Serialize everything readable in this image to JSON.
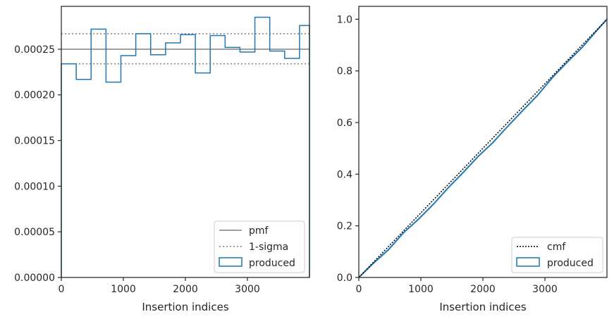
{
  "chart_data": [
    {
      "type": "histogram",
      "xlabel": "Insertion indices",
      "ylabel": "",
      "xlim": [
        0,
        4000
      ],
      "ylim": [
        0,
        0.000297
      ],
      "xticks": [
        0,
        1000,
        2000,
        3000
      ],
      "xtick_labels": [
        "0",
        "1000",
        "2000",
        "3000"
      ],
      "yticks": [
        0,
        5e-05,
        0.0001,
        0.00015,
        0.0002,
        0.00025
      ],
      "ytick_labels": [
        "0.00000",
        "0.00005",
        "0.00010",
        "0.00015",
        "0.00020",
        "0.00025"
      ],
      "bin_edges": [
        0,
        240,
        480,
        720,
        960,
        1200,
        1440,
        1680,
        1920,
        2160,
        2400,
        2640,
        2880,
        3120,
        3360,
        3600,
        3840,
        4000
      ],
      "values": [
        0.000234,
        0.000217,
        0.000272,
        0.000214,
        0.000243,
        0.000267,
        0.000244,
        0.000257,
        0.000266,
        0.000224,
        0.000265,
        0.000252,
        0.000247,
        0.000285,
        0.000248,
        0.00024,
        0.000276
      ],
      "pmf": 0.00025,
      "sigma_band": [
        0.000234,
        0.000267
      ],
      "legend": {
        "position": "lower right",
        "entries": [
          "pmf",
          "1-sigma",
          "produced"
        ]
      },
      "colors": {
        "pmf": "#808080",
        "sigma": "#808080",
        "produced": "#1f77b4"
      }
    },
    {
      "type": "line",
      "xlabel": "Insertion indices",
      "ylabel": "",
      "xlim": [
        0,
        4000
      ],
      "ylim": [
        0,
        1.05
      ],
      "xticks": [
        0,
        1000,
        2000,
        3000
      ],
      "xtick_labels": [
        "0",
        "1000",
        "2000",
        "3000"
      ],
      "yticks": [
        0,
        0.2,
        0.4,
        0.6,
        0.8,
        1.0
      ],
      "ytick_labels": [
        "0.0",
        "0.2",
        "0.4",
        "0.6",
        "0.8",
        "1.0"
      ],
      "cmf": {
        "x": [
          0,
          4000
        ],
        "y": [
          0,
          1.0
        ]
      },
      "produced": {
        "x": [
          0,
          240,
          480,
          720,
          960,
          1200,
          1440,
          1680,
          1920,
          2160,
          2400,
          2640,
          2880,
          3120,
          3360,
          3600,
          3840,
          4000
        ],
        "y": [
          0,
          0.056,
          0.108,
          0.173,
          0.225,
          0.283,
          0.347,
          0.406,
          0.468,
          0.522,
          0.585,
          0.646,
          0.705,
          0.774,
          0.834,
          0.891,
          0.957,
          1.0
        ]
      },
      "legend": {
        "position": "lower right",
        "entries": [
          "cmf",
          "produced"
        ]
      },
      "colors": {
        "cmf": "#000000",
        "produced": "#1f77b4"
      }
    }
  ]
}
